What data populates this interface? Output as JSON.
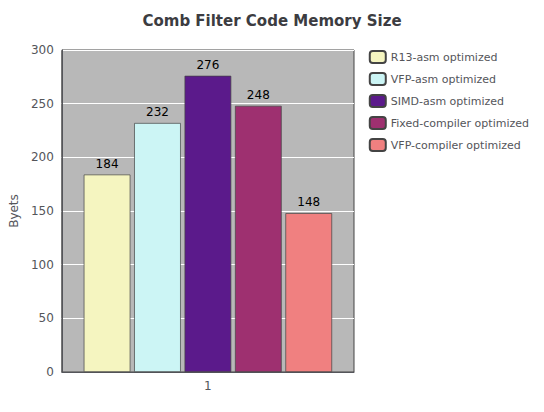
{
  "chart_data": {
    "type": "bar",
    "title": "Comb Filter Code Memory Size",
    "ylabel": "Byets",
    "categories": [
      "1"
    ],
    "series": [
      {
        "name": "R13-asm optimized",
        "color": "#f5f5c0",
        "values": [
          184
        ]
      },
      {
        "name": "VFP-asm optimized",
        "color": "#ccf5f5",
        "values": [
          232
        ]
      },
      {
        "name": "SIMD-asm optimized",
        "color": "#5b1a8b",
        "values": [
          276
        ]
      },
      {
        "name": "Fixed-compiler optimized",
        "color": "#9e3070",
        "values": [
          248
        ]
      },
      {
        "name": "VFP-compiler optimized",
        "color": "#f08080",
        "values": [
          148
        ]
      }
    ],
    "ylim": [
      0,
      300
    ],
    "yticks": [
      0,
      50,
      100,
      150,
      200,
      250,
      300
    ],
    "grid": true,
    "legend": "upper right",
    "data_labels": true
  }
}
